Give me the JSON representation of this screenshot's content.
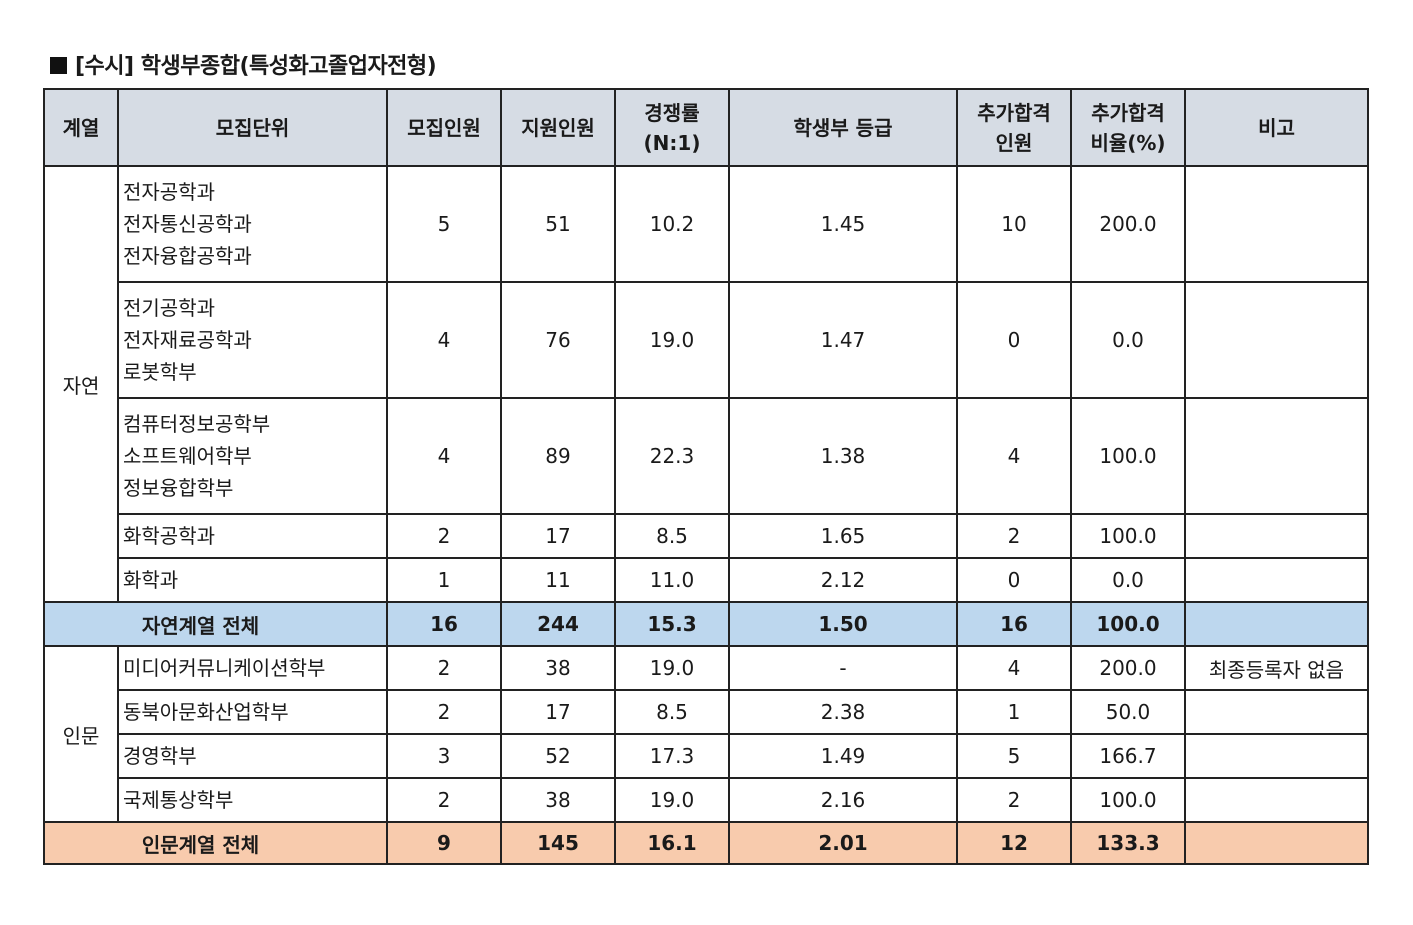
{
  "title": "[수시] 학생부종합(특성화고졸업자전형)",
  "headers": {
    "group": "계열",
    "unit": "모집단위",
    "quota": "모집인원",
    "applicants": "지원인원",
    "ratio_l1": "경쟁률",
    "ratio_l2": "(N:1)",
    "grade": "학생부 등급",
    "extra_l1": "추가합격",
    "extra_l2": "인원",
    "extra_rate_l1": "추가합격",
    "extra_rate_l2": "비율(%)",
    "note": "비고"
  },
  "groups": {
    "natural": "자연",
    "humanities": "인문"
  },
  "rows": [
    {
      "units": [
        "전자공학과",
        "전자통신공학과",
        "전자융합공학과"
      ],
      "quota": "5",
      "applicants": "51",
      "ratio": "10.2",
      "grade": "1.45",
      "extra": "10",
      "extra_rate": "200.0",
      "note": ""
    },
    {
      "units": [
        "전기공학과",
        "전자재료공학과",
        "로봇학부"
      ],
      "quota": "4",
      "applicants": "76",
      "ratio": "19.0",
      "grade": "1.47",
      "extra": "0",
      "extra_rate": "0.0",
      "note": ""
    },
    {
      "units": [
        "컴퓨터정보공학부",
        "소프트웨어학부",
        "정보융합학부"
      ],
      "quota": "4",
      "applicants": "89",
      "ratio": "22.3",
      "grade": "1.38",
      "extra": "4",
      "extra_rate": "100.0",
      "note": ""
    },
    {
      "units": [
        "화학공학과"
      ],
      "quota": "2",
      "applicants": "17",
      "ratio": "8.5",
      "grade": "1.65",
      "extra": "2",
      "extra_rate": "100.0",
      "note": ""
    },
    {
      "units": [
        "화학과"
      ],
      "quota": "1",
      "applicants": "11",
      "ratio": "11.0",
      "grade": "2.12",
      "extra": "0",
      "extra_rate": "0.0",
      "note": ""
    },
    {
      "units": [
        "미디어커뮤니케이션학부"
      ],
      "quota": "2",
      "applicants": "38",
      "ratio": "19.0",
      "grade": "-",
      "extra": "4",
      "extra_rate": "200.0",
      "note": "최종등록자 없음"
    },
    {
      "units": [
        "동북아문화산업학부"
      ],
      "quota": "2",
      "applicants": "17",
      "ratio": "8.5",
      "grade": "2.38",
      "extra": "1",
      "extra_rate": "50.0",
      "note": ""
    },
    {
      "units": [
        "경영학부"
      ],
      "quota": "3",
      "applicants": "52",
      "ratio": "17.3",
      "grade": "1.49",
      "extra": "5",
      "extra_rate": "166.7",
      "note": ""
    },
    {
      "units": [
        "국제통상학부"
      ],
      "quota": "2",
      "applicants": "38",
      "ratio": "19.0",
      "grade": "2.16",
      "extra": "2",
      "extra_rate": "100.0",
      "note": ""
    }
  ],
  "totals": {
    "natural": {
      "label": "자연계열 전체",
      "quota": "16",
      "applicants": "244",
      "ratio": "15.3",
      "grade": "1.50",
      "extra": "16",
      "extra_rate": "100.0"
    },
    "humanities": {
      "label": "인문계열 전체",
      "quota": "9",
      "applicants": "145",
      "ratio": "16.1",
      "grade": "2.01",
      "extra": "12",
      "extra_rate": "133.3"
    }
  },
  "colors": {
    "header_bg": "#d6dce4",
    "natural_total_bg": "#bdd7ee",
    "humanities_total_bg": "#f8cbad"
  }
}
